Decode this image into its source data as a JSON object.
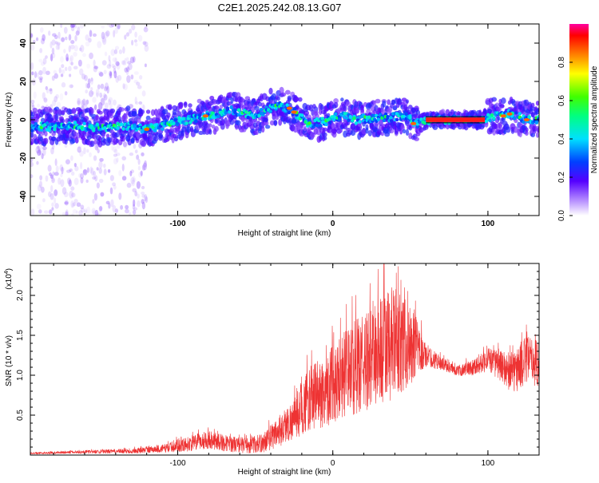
{
  "title": "C2E1.2025.242.08.13.G07",
  "chart_data": [
    {
      "type": "heatmap",
      "xlabel": "Height of straight line (km)",
      "ylabel": "Frequency (Hz)",
      "xlim": [
        -195,
        133
      ],
      "ylim": [
        -50,
        50
      ],
      "xticks": [
        -100,
        0,
        100
      ],
      "yticks": [
        -40,
        -20,
        0,
        20,
        40
      ],
      "ridge": {
        "x": [
          -195,
          -170,
          -150,
          -130,
          -120,
          -100,
          -80,
          -65,
          -50,
          -35,
          -25,
          -15,
          -5,
          5,
          15,
          25,
          35,
          45,
          55,
          65,
          80,
          95,
          105,
          115,
          125,
          133
        ],
        "y": [
          -4,
          -3,
          -4,
          -3,
          -5,
          -1,
          2,
          5,
          2,
          8,
          4,
          -2,
          -1,
          2,
          0,
          1,
          1,
          2,
          -2,
          0,
          0,
          0,
          2,
          3,
          0,
          0
        ]
      },
      "colorbar": {
        "label": "Normalized spectral amplitude",
        "ticks": [
          0.0,
          0.2,
          0.4,
          0.6,
          0.8
        ],
        "range": [
          0,
          1
        ]
      }
    },
    {
      "type": "line",
      "xlabel": "Height of straight line (km)",
      "ylabel": "SNR (10 * v/v)",
      "scale_label": "(x10",
      "scale_exp": "4",
      "scale_close": ")",
      "color": "#ee3333",
      "xlim": [
        -195,
        133
      ],
      "ylim": [
        0,
        2.4
      ],
      "xticks": [
        -100,
        0,
        100
      ],
      "yticks": [
        0.5,
        1.0,
        1.5,
        2.0
      ],
      "ytick_labels": [
        "0.5",
        "1.0",
        "1.5",
        "2.0"
      ],
      "envelope": {
        "x": [
          -195,
          -160,
          -130,
          -110,
          -90,
          -80,
          -70,
          -55,
          -45,
          -35,
          -25,
          -20,
          -15,
          -10,
          -5,
          0,
          5,
          10,
          15,
          20,
          25,
          30,
          35,
          40,
          45,
          50,
          55,
          60,
          70,
          80,
          90,
          100,
          110,
          115,
          120,
          125,
          133
        ],
        "mean": [
          0.02,
          0.04,
          0.05,
          0.08,
          0.15,
          0.2,
          0.15,
          0.12,
          0.15,
          0.3,
          0.45,
          0.6,
          0.7,
          0.75,
          0.8,
          0.9,
          1.0,
          1.05,
          1.1,
          1.15,
          1.2,
          1.3,
          1.35,
          1.4,
          1.4,
          1.35,
          1.3,
          1.25,
          1.15,
          1.05,
          1.1,
          1.2,
          1.1,
          1.0,
          1.1,
          1.2,
          1.15
        ],
        "spread": [
          0.01,
          0.02,
          0.03,
          0.05,
          0.1,
          0.12,
          0.1,
          0.1,
          0.12,
          0.2,
          0.25,
          0.35,
          0.4,
          0.45,
          0.45,
          0.5,
          0.55,
          0.55,
          0.6,
          0.6,
          0.65,
          0.7,
          0.75,
          0.7,
          0.6,
          0.5,
          0.35,
          0.15,
          0.08,
          0.06,
          0.1,
          0.15,
          0.2,
          0.25,
          0.3,
          0.3,
          0.3
        ]
      }
    }
  ]
}
